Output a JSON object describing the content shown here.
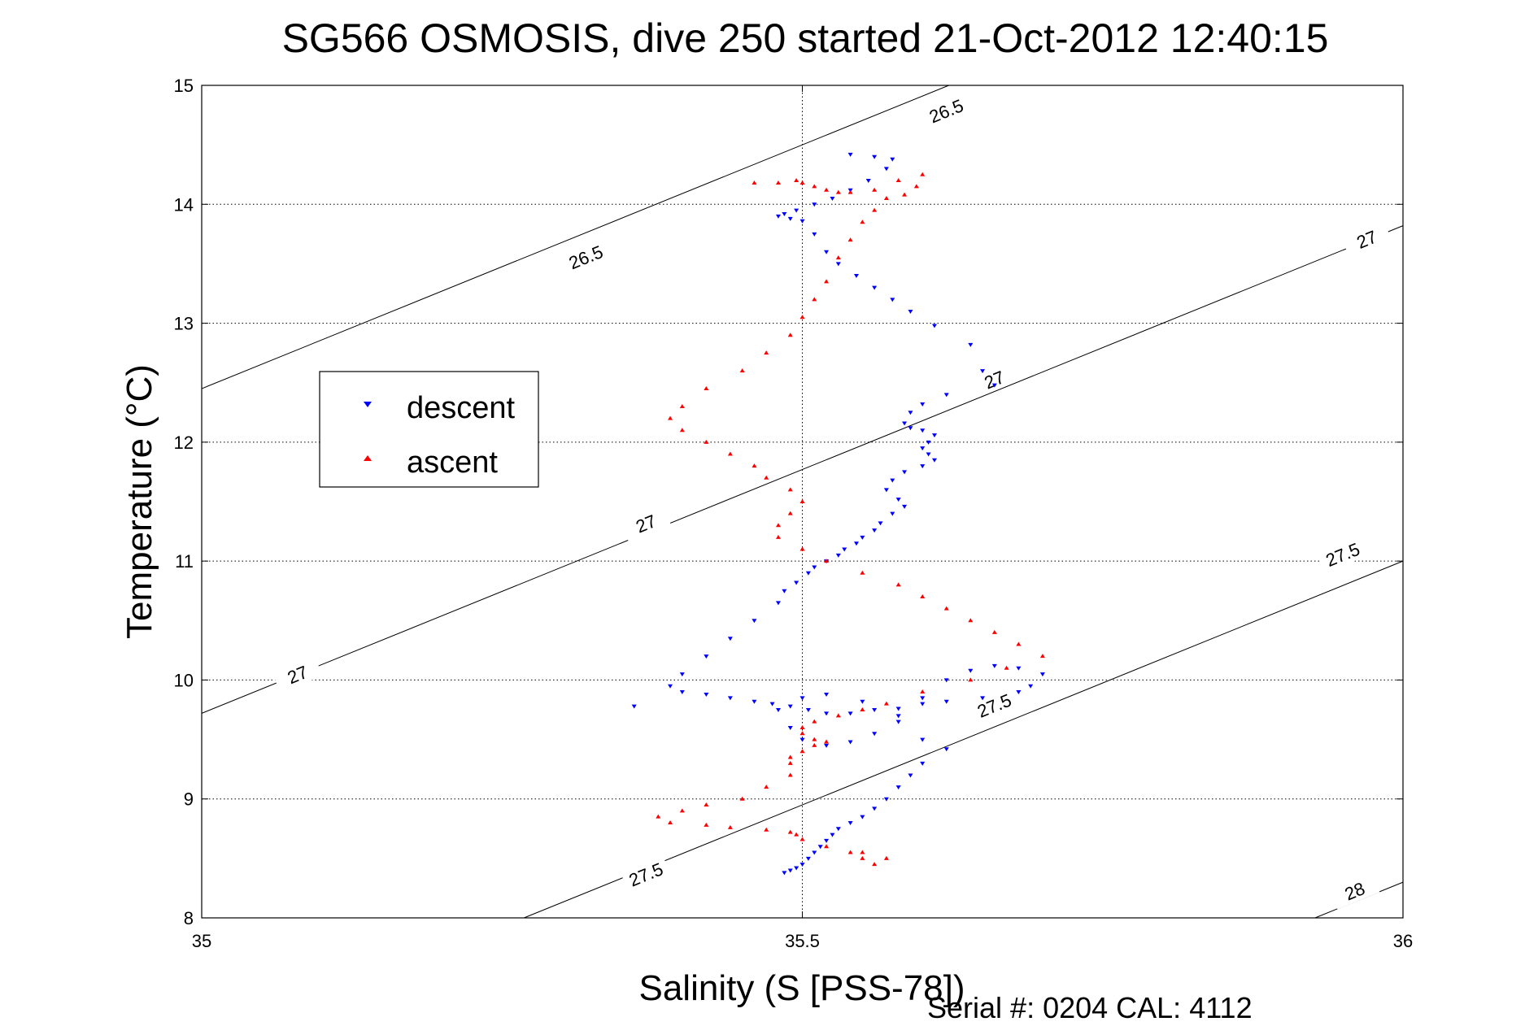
{
  "chart_data": {
    "type": "scatter",
    "title": "SG566 OSMOSIS, dive 250 started 21-Oct-2012 12:40:15",
    "xlabel": "Salinity (S [PSS-78])",
    "ylabel": "Temperature (°C)",
    "footer": "Serial #: 0204  CAL: 4112",
    "xlim": [
      35,
      36
    ],
    "ylim": [
      8,
      15
    ],
    "xticks": [
      35,
      35.5,
      36
    ],
    "xtick_labels": [
      "35",
      "35.5",
      "36"
    ],
    "yticks": [
      8,
      9,
      10,
      11,
      12,
      13,
      14,
      15
    ],
    "ytick_labels": [
      "8",
      "9",
      "10",
      "11",
      "12",
      "13",
      "14",
      "15"
    ],
    "grid": true,
    "legend_position": "upper-left",
    "density_contours": [
      {
        "level": "26.5",
        "labels": [
          {
            "x": 35.62,
            "y": 14.78
          },
          {
            "x": 35.32,
            "y": 13.55
          }
        ]
      },
      {
        "level": "27",
        "labels": [
          {
            "x": 35.08,
            "y": 10.04
          },
          {
            "x": 35.37,
            "y": 11.31
          },
          {
            "x": 35.66,
            "y": 12.52
          },
          {
            "x": 35.97,
            "y": 13.7
          }
        ]
      },
      {
        "level": "27.5",
        "labels": [
          {
            "x": 35.37,
            "y": 8.36
          },
          {
            "x": 35.66,
            "y": 9.78
          },
          {
            "x": 35.95,
            "y": 11.05
          }
        ]
      },
      {
        "level": "28",
        "labels": [
          {
            "x": 35.96,
            "y": 8.22
          }
        ]
      }
    ],
    "series": [
      {
        "name": "descent",
        "color": "#0000ff",
        "marker": "triangle-down",
        "x": [
          35.54,
          35.56,
          35.575,
          35.57,
          35.555,
          35.54,
          35.525,
          35.51,
          35.495,
          35.485,
          35.48,
          35.49,
          35.5,
          35.51,
          35.52,
          35.53,
          35.545,
          35.56,
          35.575,
          35.59,
          35.61,
          35.64,
          35.65,
          35.66,
          35.62,
          35.6,
          35.59,
          35.585,
          35.59,
          35.6,
          35.61,
          35.605,
          35.6,
          35.605,
          35.61,
          35.6,
          35.585,
          35.575,
          35.57,
          35.58,
          35.585,
          35.575,
          35.565,
          35.56,
          35.55,
          35.545,
          35.535,
          35.53,
          35.52,
          35.51,
          35.505,
          35.495,
          35.485,
          35.48,
          35.46,
          35.44,
          35.42,
          35.4,
          35.39,
          35.4,
          35.42,
          35.44,
          35.46,
          35.475,
          35.49,
          35.505,
          35.52,
          35.54,
          35.56,
          35.58,
          35.6,
          35.62,
          35.65,
          35.68,
          35.69,
          35.7,
          35.68,
          35.66,
          35.64,
          35.62,
          35.6,
          35.58,
          35.56,
          35.54,
          35.52,
          35.5,
          35.49,
          35.48,
          35.5,
          35.52,
          35.55,
          35.58,
          35.6,
          35.62,
          35.6,
          35.59,
          35.58,
          35.57,
          35.56,
          35.55,
          35.54,
          35.53,
          35.525,
          35.52,
          35.515,
          35.51,
          35.505,
          35.5,
          35.495,
          35.49,
          35.485,
          35.36
        ],
        "y": [
          14.42,
          14.4,
          14.38,
          14.3,
          14.2,
          14.12,
          14.05,
          14.0,
          13.95,
          13.92,
          13.9,
          13.88,
          13.86,
          13.75,
          13.6,
          13.5,
          13.4,
          13.3,
          13.2,
          13.1,
          12.98,
          12.82,
          12.6,
          12.48,
          12.4,
          12.32,
          12.25,
          12.16,
          12.12,
          12.1,
          12.06,
          12.0,
          11.95,
          11.9,
          11.85,
          11.8,
          11.75,
          11.68,
          11.6,
          11.52,
          11.46,
          11.4,
          11.32,
          11.26,
          11.2,
          11.15,
          11.1,
          11.05,
          11.0,
          10.95,
          10.9,
          10.82,
          10.75,
          10.65,
          10.5,
          10.35,
          10.2,
          10.05,
          9.95,
          9.9,
          9.88,
          9.85,
          9.82,
          9.8,
          9.78,
          9.75,
          9.72,
          9.72,
          9.75,
          9.76,
          9.8,
          9.82,
          9.85,
          9.9,
          9.95,
          10.05,
          10.1,
          10.12,
          10.08,
          10.0,
          9.85,
          9.7,
          9.55,
          9.48,
          9.45,
          9.5,
          9.6,
          9.75,
          9.85,
          9.88,
          9.82,
          9.65,
          9.5,
          9.42,
          9.3,
          9.2,
          9.1,
          9.0,
          8.92,
          8.85,
          8.8,
          8.75,
          8.7,
          8.65,
          8.6,
          8.55,
          8.5,
          8.45,
          8.42,
          8.4,
          8.38,
          9.78
        ]
      },
      {
        "name": "ascent",
        "color": "#ff0000",
        "marker": "triangle-up",
        "x": [
          35.46,
          35.48,
          35.495,
          35.5,
          35.51,
          35.52,
          35.53,
          35.54,
          35.56,
          35.58,
          35.6,
          35.595,
          35.585,
          35.57,
          35.56,
          35.55,
          35.54,
          35.53,
          35.52,
          35.51,
          35.5,
          35.49,
          35.47,
          35.45,
          35.42,
          35.4,
          35.39,
          35.4,
          35.42,
          35.44,
          35.46,
          35.47,
          35.49,
          35.5,
          35.49,
          35.48,
          35.48,
          35.5,
          35.52,
          35.55,
          35.58,
          35.6,
          35.62,
          35.64,
          35.66,
          35.68,
          35.7,
          35.67,
          35.64,
          35.6,
          35.57,
          35.55,
          35.53,
          35.51,
          35.5,
          35.5,
          35.51,
          35.52,
          35.51,
          35.5,
          35.49,
          35.49,
          35.49,
          35.47,
          35.45,
          35.42,
          35.4,
          35.38,
          35.39,
          35.42,
          35.44,
          35.47,
          35.49,
          35.495,
          35.5,
          35.52,
          35.54,
          35.55,
          35.56,
          35.57,
          35.55
        ],
        "y": [
          14.18,
          14.18,
          14.2,
          14.18,
          14.15,
          14.12,
          14.1,
          14.1,
          14.12,
          14.2,
          14.25,
          14.15,
          14.08,
          14.05,
          13.95,
          13.85,
          13.7,
          13.55,
          13.35,
          13.2,
          13.05,
          12.9,
          12.75,
          12.6,
          12.45,
          12.3,
          12.2,
          12.1,
          12.0,
          11.9,
          11.8,
          11.7,
          11.6,
          11.5,
          11.4,
          11.3,
          11.2,
          11.1,
          11.0,
          10.9,
          10.8,
          10.7,
          10.6,
          10.5,
          10.4,
          10.3,
          10.2,
          10.1,
          10.0,
          9.9,
          9.8,
          9.75,
          9.7,
          9.65,
          9.6,
          9.55,
          9.5,
          9.48,
          9.45,
          9.4,
          9.35,
          9.3,
          9.2,
          9.1,
          9.0,
          8.95,
          8.9,
          8.85,
          8.8,
          8.78,
          8.76,
          8.74,
          8.72,
          8.7,
          8.66,
          8.6,
          8.55,
          8.5,
          8.45,
          8.5,
          8.55
        ]
      }
    ]
  }
}
